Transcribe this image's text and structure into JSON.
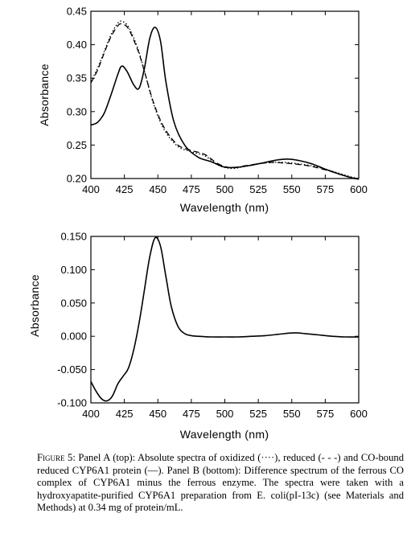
{
  "chart_data": [
    {
      "type": "line",
      "panel": "A",
      "xlabel": "Wavelength (nm)",
      "ylabel": "Absorbance",
      "xlim": [
        400,
        600
      ],
      "ylim": [
        0.2,
        0.45
      ],
      "xticks": [
        400,
        425,
        450,
        475,
        500,
        525,
        550,
        575,
        600
      ],
      "yticks": [
        0.2,
        0.25,
        0.3,
        0.35,
        0.4,
        0.45
      ],
      "xtick_labels": [
        "400",
        "425",
        "450",
        "475",
        "500",
        "525",
        "550",
        "575",
        "600"
      ],
      "ytick_labels": [
        "0.20",
        "0.25",
        "0.30",
        "0.35",
        "0.40",
        "0.45"
      ],
      "grid": false,
      "series": [
        {
          "style": "dotted",
          "x": [
            400,
            405,
            410,
            415,
            420,
            423,
            428,
            435,
            440,
            447,
            455,
            465,
            475,
            485,
            495,
            505,
            515,
            525,
            535,
            545,
            555,
            565,
            575,
            585,
            595,
            600
          ],
          "y": [
            0.345,
            0.365,
            0.39,
            0.415,
            0.432,
            0.435,
            0.427,
            0.395,
            0.36,
            0.31,
            0.272,
            0.248,
            0.24,
            0.234,
            0.22,
            0.215,
            0.218,
            0.222,
            0.224,
            0.224,
            0.222,
            0.219,
            0.214,
            0.208,
            0.202,
            0.2
          ]
        },
        {
          "style": "dashed",
          "x": [
            400,
            405,
            410,
            415,
            420,
            423,
            428,
            435,
            440,
            447,
            455,
            465,
            475,
            485,
            495,
            505,
            515,
            525,
            535,
            545,
            555,
            565,
            575,
            585,
            595,
            600
          ],
          "y": [
            0.343,
            0.362,
            0.388,
            0.412,
            0.428,
            0.431,
            0.424,
            0.392,
            0.36,
            0.312,
            0.275,
            0.25,
            0.242,
            0.236,
            0.222,
            0.216,
            0.219,
            0.222,
            0.224,
            0.223,
            0.221,
            0.218,
            0.213,
            0.207,
            0.201,
            0.2
          ]
        },
        {
          "style": "solid",
          "x": [
            400,
            405,
            410,
            415,
            420,
            423,
            427,
            432,
            436,
            440,
            444,
            448,
            452,
            456,
            462,
            470,
            480,
            490,
            500,
            510,
            520,
            530,
            540,
            548,
            555,
            565,
            575,
            585,
            595,
            600
          ],
          "y": [
            0.28,
            0.284,
            0.298,
            0.325,
            0.355,
            0.368,
            0.36,
            0.34,
            0.335,
            0.365,
            0.41,
            0.426,
            0.405,
            0.345,
            0.285,
            0.25,
            0.232,
            0.225,
            0.217,
            0.217,
            0.22,
            0.224,
            0.228,
            0.229,
            0.227,
            0.222,
            0.214,
            0.207,
            0.201,
            0.199
          ]
        }
      ]
    },
    {
      "type": "line",
      "panel": "B",
      "xlabel": "Wavelength (nm)",
      "ylabel": "Absorbance",
      "xlim": [
        400,
        600
      ],
      "ylim": [
        -0.1,
        0.15
      ],
      "xticks": [
        400,
        425,
        450,
        475,
        500,
        525,
        550,
        575,
        600
      ],
      "yticks": [
        -0.1,
        -0.05,
        0.0,
        0.05,
        0.1,
        0.15
      ],
      "xtick_labels": [
        "400",
        "425",
        "450",
        "475",
        "500",
        "525",
        "550",
        "575",
        "600"
      ],
      "ytick_labels": [
        "-0.100",
        "-0.050",
        "0.000",
        "0.050",
        "0.100",
        "0.150"
      ],
      "grid": false,
      "series": [
        {
          "style": "solid",
          "x": [
            400,
            404,
            408,
            412,
            416,
            420,
            424,
            428,
            432,
            436,
            440,
            444,
            448,
            452,
            456,
            460,
            465,
            470,
            475,
            480,
            490,
            500,
            510,
            520,
            530,
            540,
            550,
            555,
            560,
            570,
            580,
            590,
            600
          ],
          "y": [
            -0.068,
            -0.083,
            -0.094,
            -0.097,
            -0.09,
            -0.072,
            -0.06,
            -0.048,
            -0.02,
            0.02,
            0.07,
            0.12,
            0.148,
            0.135,
            0.09,
            0.045,
            0.015,
            0.004,
            0.001,
            0.0,
            -0.001,
            -0.001,
            -0.001,
            0.0,
            0.001,
            0.003,
            0.005,
            0.005,
            0.004,
            0.002,
            0.0,
            -0.001,
            -0.001
          ]
        }
      ]
    }
  ],
  "caption": {
    "label": "Figure 5:",
    "text": "Panel A (top): Absolute spectra of oxidized (····), reduced (- - -) and CO-bound reduced CYP6A1 protein (—). Panel B (bottom): Difference spectrum of the ferrous CO complex of CYP6A1 minus the ferrous enzyme. The spectra were taken with a hydroxyapatite-purified CYP6A1 preparation from E. coli(pI-13c) (see Materials and Methods) at 0.34 mg of protein/mL."
  }
}
